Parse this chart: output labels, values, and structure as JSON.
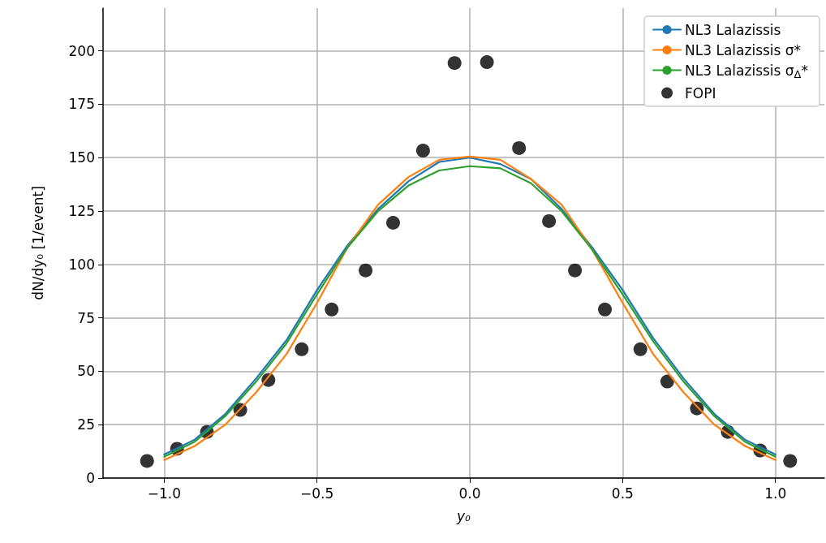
{
  "chart_data": {
    "type": "line",
    "xlabel": "y₀",
    "ylabel": "dN/dy₀ [1/event]",
    "xlim": [
      -1.2,
      1.16
    ],
    "xticks": [
      {
        "value": -1,
        "label": "−1.0"
      },
      {
        "value": -0.5,
        "label": "−0.5"
      },
      {
        "value": 0,
        "label": "0.0"
      },
      {
        "value": 0.5,
        "label": "0.5"
      },
      {
        "value": 1,
        "label": "1.0"
      }
    ],
    "ylim": [
      0,
      220
    ],
    "yticks": [
      0,
      25,
      50,
      75,
      100,
      125,
      150,
      175,
      200
    ],
    "grid": true,
    "legend": "top right",
    "series": [
      {
        "name": "NL3 Lalazissis",
        "marker": "none",
        "color": "#1f77b4",
        "x": [
          -1,
          -0.9,
          -0.8,
          -0.7,
          -0.6,
          -0.5,
          -0.4,
          -0.3,
          -0.2,
          -0.1,
          0,
          0.1,
          0.2,
          0.3,
          0.4,
          0.5,
          0.6,
          0.7,
          0.8,
          0.9,
          1
        ],
        "values": [
          11,
          18,
          30,
          46.5,
          64.5,
          88,
          109,
          126,
          139,
          148,
          150,
          147,
          140,
          126,
          108,
          88,
          65.5,
          46.5,
          30,
          18,
          11
        ]
      },
      {
        "name": "NL3 Lalazissis σ*",
        "marker": "none",
        "color": "#ff7f0e",
        "x": [
          -1,
          -0.9,
          -0.8,
          -0.7,
          -0.6,
          -0.5,
          -0.4,
          -0.3,
          -0.2,
          -0.1,
          0,
          0.1,
          0.2,
          0.3,
          0.4,
          0.5,
          0.6,
          0.7,
          0.8,
          0.9,
          1
        ],
        "values": [
          8.5,
          15,
          25,
          40,
          58,
          82,
          108,
          128,
          141,
          149,
          150.5,
          149,
          140,
          128,
          107,
          82,
          58,
          40,
          25,
          15,
          8.5
        ]
      },
      {
        "name": "NL3 Lalazissis σ$_{Δ}$*",
        "marker": "none",
        "color": "#2ca02c",
        "x": [
          -1,
          -0.9,
          -0.8,
          -0.7,
          -0.6,
          -0.5,
          -0.4,
          -0.3,
          -0.2,
          -0.1,
          0,
          0.1,
          0.2,
          0.3,
          0.4,
          0.5,
          0.6,
          0.7,
          0.8,
          0.9,
          1
        ],
        "values": [
          10,
          17,
          29,
          45,
          63,
          86,
          108,
          125,
          137,
          144,
          146,
          145,
          138,
          125,
          107,
          86,
          64,
          45,
          29,
          17,
          10
        ]
      },
      {
        "name": "FOPI",
        "type": "scatter",
        "marker": "circle",
        "color": "#000000",
        "x": [
          -1.056,
          -0.958,
          -0.86,
          -0.751,
          -0.659,
          -0.55,
          -0.452,
          -0.341,
          -0.251,
          -0.153,
          -0.05,
          0.056,
          0.161,
          0.259,
          0.344,
          0.442,
          0.558,
          0.646,
          0.743,
          0.844,
          0.95,
          1.048
        ],
        "values": [
          8,
          13.7,
          21.6,
          31.9,
          45.9,
          60.3,
          78.9,
          97.2,
          119.5,
          153.3,
          194.3,
          194.7,
          154.5,
          120.3,
          97.2,
          78.9,
          60.3,
          45.2,
          32.6,
          21.6,
          12.9,
          8
        ]
      }
    ]
  }
}
